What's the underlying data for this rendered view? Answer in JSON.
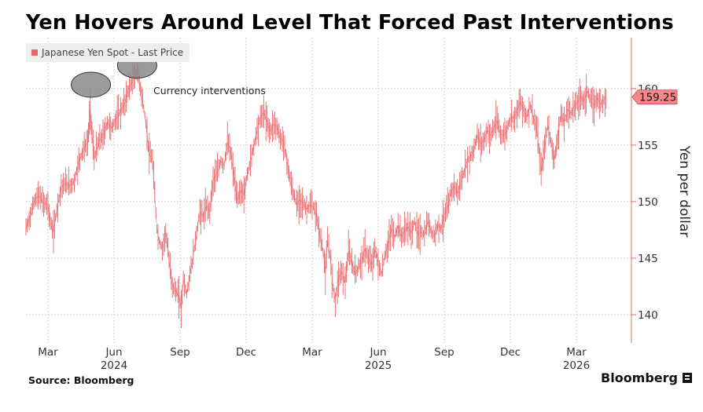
{
  "title": "Yen Hovers Around Level That Forced Past Interventions",
  "source": "Source: Bloomberg",
  "brand": "Bloomberg",
  "colors": {
    "series": "#e8686c",
    "badge": "#f4898c",
    "grid": "#c8c8c8",
    "ellipse_fill": "#8a8a8a"
  },
  "chart_data": {
    "type": "line",
    "title": "Yen Hovers Around Level That Forced Past Interventions",
    "ylabel": "Yen per dollar",
    "xlabel": "",
    "ylim": [
      137.5,
      164.5
    ],
    "y_ticks": [
      140,
      145,
      150,
      155,
      160
    ],
    "x_ticks": [
      {
        "label": "Mar",
        "year": "",
        "t": 1.0
      },
      {
        "label": "Jun",
        "year": "2024",
        "t": 4.0
      },
      {
        "label": "Sep",
        "year": "",
        "t": 7.0
      },
      {
        "label": "Dec",
        "year": "",
        "t": 10.0
      },
      {
        "label": "Mar",
        "year": "",
        "t": 13.0
      },
      {
        "label": "Jun",
        "year": "2025",
        "t": 16.0
      },
      {
        "label": "Sep",
        "year": "",
        "t": 19.0
      },
      {
        "label": "Dec",
        "year": "",
        "t": 22.0
      },
      {
        "label": "Mar",
        "year": "2026",
        "t": 25.0
      }
    ],
    "x_range_months": [
      0,
      27.5
    ],
    "legend": "Japanese Yen Spot - Last Price",
    "last_value_label": "159.25",
    "annotation": "Currency interventions",
    "interventions": [
      {
        "date": "2024-04-29",
        "t": 2.95,
        "value": 160.2
      },
      {
        "date": "2024-07-03",
        "t": 5.05,
        "value": 161.9
      }
    ],
    "series": [
      {
        "name": "Japanese Yen Spot - Last Price",
        "points": [
          [
            0.0,
            147.6
          ],
          [
            0.2,
            148.8
          ],
          [
            0.4,
            150.2
          ],
          [
            0.6,
            150.5
          ],
          [
            0.8,
            149.9
          ],
          [
            1.0,
            149.7
          ],
          [
            1.1,
            148.2
          ],
          [
            1.25,
            147.3
          ],
          [
            1.4,
            149.3
          ],
          [
            1.6,
            151.3
          ],
          [
            1.8,
            151.6
          ],
          [
            2.0,
            151.4
          ],
          [
            2.2,
            151.8
          ],
          [
            2.4,
            153.5
          ],
          [
            2.6,
            154.6
          ],
          [
            2.8,
            155.2
          ],
          [
            2.92,
            158.2
          ],
          [
            3.0,
            156.0
          ],
          [
            3.1,
            153.8
          ],
          [
            3.3,
            155.3
          ],
          [
            3.5,
            155.8
          ],
          [
            3.7,
            157.0
          ],
          [
            3.9,
            156.5
          ],
          [
            4.1,
            157.4
          ],
          [
            4.3,
            158.0
          ],
          [
            4.5,
            158.8
          ],
          [
            4.7,
            160.2
          ],
          [
            4.9,
            160.8
          ],
          [
            5.05,
            161.6
          ],
          [
            5.15,
            160.6
          ],
          [
            5.3,
            158.9
          ],
          [
            5.45,
            156.9
          ],
          [
            5.6,
            154.2
          ],
          [
            5.75,
            153.7
          ],
          [
            5.85,
            150.5
          ],
          [
            5.95,
            147.6
          ],
          [
            6.05,
            146.5
          ],
          [
            6.2,
            145.8
          ],
          [
            6.35,
            147.4
          ],
          [
            6.5,
            144.8
          ],
          [
            6.65,
            142.6
          ],
          [
            6.8,
            142.1
          ],
          [
            6.95,
            141.6
          ],
          [
            7.05,
            140.6
          ],
          [
            7.15,
            143.2
          ],
          [
            7.3,
            141.8
          ],
          [
            7.45,
            143.6
          ],
          [
            7.6,
            145.2
          ],
          [
            7.75,
            147.2
          ],
          [
            7.9,
            149.1
          ],
          [
            8.05,
            148.7
          ],
          [
            8.2,
            149.6
          ],
          [
            8.35,
            149.2
          ],
          [
            8.5,
            151.9
          ],
          [
            8.7,
            152.6
          ],
          [
            8.85,
            153.6
          ],
          [
            9.0,
            153.2
          ],
          [
            9.15,
            155.3
          ],
          [
            9.3,
            154.3
          ],
          [
            9.45,
            152.2
          ],
          [
            9.6,
            150.1
          ],
          [
            9.75,
            151.0
          ],
          [
            9.9,
            150.6
          ],
          [
            10.05,
            152.4
          ],
          [
            10.2,
            153.6
          ],
          [
            10.35,
            154.9
          ],
          [
            10.5,
            156.4
          ],
          [
            10.65,
            157.4
          ],
          [
            10.8,
            157.9
          ],
          [
            10.95,
            157.0
          ],
          [
            11.1,
            156.2
          ],
          [
            11.25,
            156.9
          ],
          [
            11.4,
            156.6
          ],
          [
            11.55,
            155.6
          ],
          [
            11.7,
            155.4
          ],
          [
            11.85,
            153.6
          ],
          [
            12.0,
            151.9
          ],
          [
            12.15,
            150.7
          ],
          [
            12.3,
            149.7
          ],
          [
            12.45,
            150.2
          ],
          [
            12.6,
            149.8
          ],
          [
            12.75,
            149.3
          ],
          [
            12.9,
            149.7
          ],
          [
            13.05,
            149.5
          ],
          [
            13.2,
            148.7
          ],
          [
            13.35,
            147.0
          ],
          [
            13.5,
            145.6
          ],
          [
            13.6,
            143.6
          ],
          [
            13.7,
            146.5
          ],
          [
            13.8,
            145.4
          ],
          [
            13.95,
            142.4
          ],
          [
            14.05,
            141.3
          ],
          [
            14.2,
            143.3
          ],
          [
            14.35,
            143.8
          ],
          [
            14.5,
            142.8
          ],
          [
            14.65,
            145.6
          ],
          [
            14.8,
            144.6
          ],
          [
            14.95,
            143.6
          ],
          [
            15.1,
            144.2
          ],
          [
            15.25,
            144.8
          ],
          [
            15.4,
            145.8
          ],
          [
            15.55,
            145.0
          ],
          [
            15.7,
            144.4
          ],
          [
            15.85,
            145.8
          ],
          [
            16.0,
            144.5
          ],
          [
            16.15,
            143.6
          ],
          [
            16.3,
            145.2
          ],
          [
            16.45,
            146.2
          ],
          [
            16.6,
            147.6
          ],
          [
            16.75,
            146.8
          ],
          [
            16.9,
            147.9
          ],
          [
            17.05,
            146.9
          ],
          [
            17.2,
            147.4
          ],
          [
            17.35,
            147.8
          ],
          [
            17.5,
            147.2
          ],
          [
            17.65,
            148.2
          ],
          [
            17.8,
            147.1
          ],
          [
            17.95,
            147.3
          ],
          [
            18.1,
            147.0
          ],
          [
            18.25,
            148.3
          ],
          [
            18.4,
            147.4
          ],
          [
            18.55,
            146.9
          ],
          [
            18.7,
            148.0
          ],
          [
            18.85,
            147.6
          ],
          [
            19.0,
            148.8
          ],
          [
            19.15,
            149.4
          ],
          [
            19.3,
            150.8
          ],
          [
            19.45,
            151.4
          ],
          [
            19.6,
            150.7
          ],
          [
            19.75,
            151.7
          ],
          [
            19.9,
            152.6
          ],
          [
            20.05,
            153.6
          ],
          [
            20.2,
            154.0
          ],
          [
            20.35,
            154.6
          ],
          [
            20.5,
            155.9
          ],
          [
            20.65,
            155.1
          ],
          [
            20.8,
            155.4
          ],
          [
            20.95,
            156.3
          ],
          [
            21.1,
            155.8
          ],
          [
            21.25,
            156.5
          ],
          [
            21.4,
            157.2
          ],
          [
            21.55,
            156.0
          ],
          [
            21.7,
            155.8
          ],
          [
            21.85,
            156.4
          ],
          [
            22.0,
            157.4
          ],
          [
            22.15,
            157.4
          ],
          [
            22.3,
            158.0
          ],
          [
            22.45,
            158.8
          ],
          [
            22.6,
            158.2
          ],
          [
            22.75,
            157.4
          ],
          [
            22.9,
            158.6
          ],
          [
            23.05,
            157.4
          ],
          [
            23.2,
            156.4
          ],
          [
            23.3,
            154.6
          ],
          [
            23.4,
            152.6
          ],
          [
            23.55,
            154.8
          ],
          [
            23.7,
            156.8
          ],
          [
            23.85,
            155.3
          ],
          [
            24.0,
            153.6
          ],
          [
            24.15,
            155.8
          ],
          [
            24.3,
            157.6
          ],
          [
            24.45,
            157.0
          ],
          [
            24.6,
            158.2
          ],
          [
            24.75,
            157.8
          ],
          [
            24.9,
            158.4
          ],
          [
            25.05,
            158.8
          ],
          [
            25.2,
            159.3
          ],
          [
            25.35,
            158.9
          ],
          [
            25.5,
            159.8
          ],
          [
            25.65,
            158.9
          ],
          [
            25.8,
            158.5
          ],
          [
            25.95,
            159.2
          ],
          [
            26.1,
            158.6
          ],
          [
            26.25,
            159.0
          ],
          [
            26.35,
            159.25
          ]
        ]
      }
    ]
  }
}
